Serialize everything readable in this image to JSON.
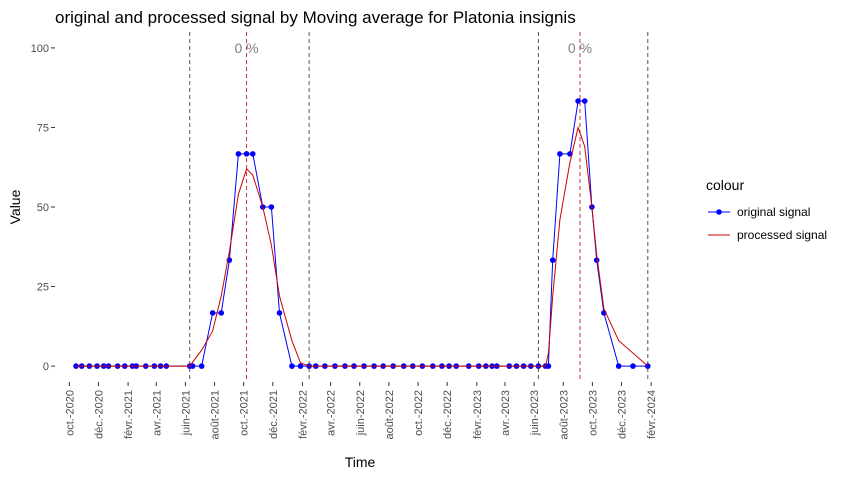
{
  "chart_data": {
    "type": "line",
    "title": "original and processed signal by Moving average for Platonia insignis",
    "xlabel": "Time",
    "ylabel": "Value",
    "ylim": [
      -5,
      105
    ],
    "yticks": [
      0,
      25,
      50,
      75,
      100
    ],
    "xlim": [
      "2020-09-01",
      "2024-03-01"
    ],
    "xticks": [
      {
        "date": "2020-10-01",
        "label": "oct.-2020"
      },
      {
        "date": "2020-12-01",
        "label": "déc.-2020"
      },
      {
        "date": "2021-02-01",
        "label": "févr.-2021"
      },
      {
        "date": "2021-04-01",
        "label": "avr.-2021"
      },
      {
        "date": "2021-06-01",
        "label": "juin-2021"
      },
      {
        "date": "2021-08-01",
        "label": "août-2021"
      },
      {
        "date": "2021-10-01",
        "label": "oct.-2021"
      },
      {
        "date": "2021-12-01",
        "label": "déc.-2021"
      },
      {
        "date": "2022-02-01",
        "label": "févr.-2022"
      },
      {
        "date": "2022-04-01",
        "label": "avr.-2022"
      },
      {
        "date": "2022-06-01",
        "label": "juin-2022"
      },
      {
        "date": "2022-08-01",
        "label": "août-2022"
      },
      {
        "date": "2022-10-01",
        "label": "oct.-2022"
      },
      {
        "date": "2022-12-01",
        "label": "déc.-2022"
      },
      {
        "date": "2023-02-01",
        "label": "févr.-2023"
      },
      {
        "date": "2023-04-01",
        "label": "avr.-2023"
      },
      {
        "date": "2023-06-01",
        "label": "juin-2023"
      },
      {
        "date": "2023-08-01",
        "label": "août-2023"
      },
      {
        "date": "2023-10-01",
        "label": "oct.-2023"
      },
      {
        "date": "2023-12-01",
        "label": "déc.-2023"
      },
      {
        "date": "2024-02-01",
        "label": "févr.-2024"
      }
    ],
    "grid": false,
    "legend": {
      "title": "colour",
      "position": "right"
    },
    "series": [
      {
        "name": "original signal",
        "color": "#0000ff",
        "markers": true,
        "points": [
          [
            "2020-10-15",
            0
          ],
          [
            "2020-10-27",
            0
          ],
          [
            "2020-11-12",
            0
          ],
          [
            "2020-11-28",
            0
          ],
          [
            "2020-12-12",
            0
          ],
          [
            "2020-12-22",
            0
          ],
          [
            "2021-01-10",
            0
          ],
          [
            "2021-01-25",
            0
          ],
          [
            "2021-02-10",
            0
          ],
          [
            "2021-02-18",
            0
          ],
          [
            "2021-03-10",
            0
          ],
          [
            "2021-03-28",
            0
          ],
          [
            "2021-04-10",
            0
          ],
          [
            "2021-04-22",
            0
          ],
          [
            "2021-06-10",
            0
          ],
          [
            "2021-06-16",
            0
          ],
          [
            "2021-07-05",
            0
          ],
          [
            "2021-07-28",
            16.7
          ],
          [
            "2021-08-15",
            16.7
          ],
          [
            "2021-09-01",
            33.3
          ],
          [
            "2021-09-20",
            66.7
          ],
          [
            "2021-10-07",
            66.7
          ],
          [
            "2021-10-20",
            66.7
          ],
          [
            "2021-11-10",
            50
          ],
          [
            "2021-11-28",
            50
          ],
          [
            "2021-12-15",
            16.7
          ],
          [
            "2022-01-10",
            0
          ],
          [
            "2022-01-28",
            0
          ],
          [
            "2022-02-15",
            0
          ],
          [
            "2022-03-01",
            0
          ],
          [
            "2022-03-20",
            0
          ],
          [
            "2022-04-10",
            0
          ],
          [
            "2022-05-01",
            0
          ],
          [
            "2022-05-20",
            0
          ],
          [
            "2022-06-10",
            0
          ],
          [
            "2022-07-01",
            0
          ],
          [
            "2022-07-20",
            0
          ],
          [
            "2022-08-10",
            0
          ],
          [
            "2022-09-01",
            0
          ],
          [
            "2022-09-20",
            0
          ],
          [
            "2022-10-10",
            0
          ],
          [
            "2022-11-01",
            0
          ],
          [
            "2022-11-20",
            0
          ],
          [
            "2022-12-05",
            0
          ],
          [
            "2022-12-20",
            0
          ],
          [
            "2023-01-15",
            0
          ],
          [
            "2023-02-05",
            0
          ],
          [
            "2023-02-20",
            0
          ],
          [
            "2023-03-05",
            0
          ],
          [
            "2023-03-15",
            0
          ],
          [
            "2023-04-10",
            0
          ],
          [
            "2023-04-25",
            0
          ],
          [
            "2023-05-10",
            0
          ],
          [
            "2023-05-25",
            0
          ],
          [
            "2023-06-10",
            0
          ],
          [
            "2023-06-25",
            0
          ],
          [
            "2023-07-01",
            0
          ],
          [
            "2023-07-10",
            33.3
          ],
          [
            "2023-07-25",
            66.7
          ],
          [
            "2023-08-15",
            66.7
          ],
          [
            "2023-09-01",
            83.3
          ],
          [
            "2023-09-15",
            83.3
          ],
          [
            "2023-09-30",
            50
          ],
          [
            "2023-10-10",
            33.3
          ],
          [
            "2023-10-25",
            16.7
          ],
          [
            "2023-11-25",
            0
          ],
          [
            "2023-12-25",
            0
          ],
          [
            "2024-01-25",
            0
          ]
        ]
      },
      {
        "name": "processed signal",
        "color": "#cc0000",
        "markers": false,
        "points": [
          [
            "2020-10-15",
            0
          ],
          [
            "2021-06-10",
            0
          ],
          [
            "2021-07-05",
            5
          ],
          [
            "2021-07-28",
            11
          ],
          [
            "2021-08-15",
            22
          ],
          [
            "2021-09-01",
            36
          ],
          [
            "2021-09-20",
            54
          ],
          [
            "2021-10-07",
            62
          ],
          [
            "2021-10-20",
            60
          ],
          [
            "2021-11-10",
            50
          ],
          [
            "2021-11-28",
            38
          ],
          [
            "2021-12-15",
            22
          ],
          [
            "2022-01-10",
            8
          ],
          [
            "2022-01-28",
            1
          ],
          [
            "2022-02-15",
            0
          ],
          [
            "2023-06-10",
            0
          ],
          [
            "2023-06-25",
            0
          ],
          [
            "2023-07-01",
            4
          ],
          [
            "2023-07-10",
            22
          ],
          [
            "2023-07-25",
            46
          ],
          [
            "2023-08-15",
            64
          ],
          [
            "2023-09-01",
            75
          ],
          [
            "2023-09-15",
            69
          ],
          [
            "2023-09-30",
            50
          ],
          [
            "2023-10-10",
            35
          ],
          [
            "2023-10-25",
            18
          ],
          [
            "2023-11-25",
            8
          ],
          [
            "2024-01-25",
            0
          ]
        ]
      }
    ],
    "vlines": [
      {
        "date": "2021-06-10",
        "style": "dashed",
        "color": "#555555"
      },
      {
        "date": "2022-02-15",
        "style": "dashed",
        "color": "#555555"
      },
      {
        "date": "2023-06-10",
        "style": "dashed",
        "color": "#555555"
      },
      {
        "date": "2024-01-25",
        "style": "dashed",
        "color": "#555555"
      },
      {
        "date": "2021-10-07",
        "style": "dashed",
        "color": "#cc3333"
      },
      {
        "date": "2023-09-05",
        "style": "dashed",
        "color": "#cc3333"
      }
    ],
    "annotations": [
      {
        "date": "2021-10-07",
        "y": 100,
        "text": "0 %"
      },
      {
        "date": "2023-09-05",
        "y": 100,
        "text": "0 %"
      }
    ]
  }
}
